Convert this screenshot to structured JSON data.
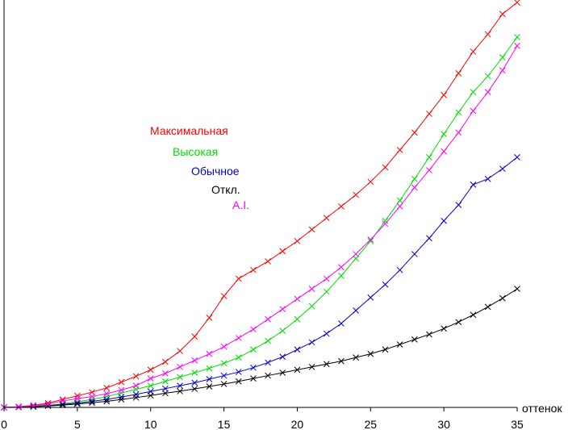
{
  "chart_data": {
    "type": "line",
    "title": "",
    "xlabel": "оттенок",
    "ylabel": "",
    "grid": false,
    "legend_placement": "center-left",
    "xlim": [
      0,
      35
    ],
    "ylim": [
      0,
      28
    ],
    "x_ticks": [
      0,
      5,
      10,
      15,
      20,
      25,
      30,
      35
    ],
    "x": [
      0,
      1,
      2,
      3,
      4,
      5,
      6,
      7,
      8,
      9,
      10,
      11,
      12,
      13,
      14,
      15,
      16,
      17,
      18,
      19,
      20,
      21,
      22,
      23,
      24,
      25,
      26,
      27,
      28,
      29,
      30,
      31,
      32,
      33,
      34,
      35
    ],
    "series": [
      {
        "name": "Максимальная",
        "color": "#ff0000",
        "values": [
          0.0,
          0.05,
          0.15,
          0.3,
          0.55,
          0.8,
          1.05,
          1.35,
          1.75,
          2.15,
          2.6,
          3.15,
          3.9,
          4.9,
          6.2,
          7.7,
          8.9,
          9.5,
          10.1,
          10.8,
          11.5,
          12.3,
          13.1,
          13.9,
          14.7,
          15.6,
          16.6,
          17.8,
          19.0,
          20.3,
          21.6,
          23.1,
          24.6,
          25.8,
          27.2,
          28.0
        ]
      },
      {
        "name": "Высокая",
        "color": "#00dd00",
        "values": [
          0.0,
          0.02,
          0.08,
          0.15,
          0.25,
          0.4,
          0.55,
          0.75,
          1.0,
          1.25,
          1.5,
          1.8,
          2.1,
          2.4,
          2.7,
          3.05,
          3.45,
          4.0,
          4.6,
          5.3,
          6.1,
          7.0,
          8.0,
          9.1,
          10.3,
          11.5,
          12.9,
          14.3,
          15.8,
          17.3,
          18.9,
          20.4,
          21.8,
          22.9,
          24.2,
          25.6
        ]
      },
      {
        "name": "Обычное",
        "color": "#0000cc",
        "values": [
          0.0,
          0.02,
          0.06,
          0.12,
          0.2,
          0.3,
          0.42,
          0.55,
          0.72,
          0.9,
          1.1,
          1.3,
          1.5,
          1.7,
          1.95,
          2.2,
          2.45,
          2.75,
          3.1,
          3.5,
          4.0,
          4.5,
          5.1,
          5.8,
          6.7,
          7.6,
          8.5,
          9.5,
          10.6,
          11.7,
          12.9,
          14.0,
          15.4,
          15.8,
          16.5,
          17.3
        ]
      },
      {
        "name": "Откл.",
        "color": "#000000",
        "values": [
          0.0,
          0.02,
          0.05,
          0.1,
          0.16,
          0.24,
          0.32,
          0.42,
          0.55,
          0.68,
          0.82,
          0.98,
          1.12,
          1.28,
          1.45,
          1.62,
          1.8,
          2.0,
          2.2,
          2.4,
          2.6,
          2.8,
          3.0,
          3.2,
          3.45,
          3.7,
          4.0,
          4.35,
          4.7,
          5.05,
          5.45,
          5.9,
          6.4,
          6.95,
          7.55,
          8.2
        ]
      },
      {
        "name": "A.I.",
        "color": "#ff00ff",
        "values": [
          0.0,
          0.04,
          0.12,
          0.22,
          0.45,
          0.6,
          0.75,
          0.95,
          1.2,
          1.5,
          2.0,
          2.35,
          2.8,
          3.25,
          3.7,
          4.2,
          4.8,
          5.4,
          6.1,
          6.8,
          7.5,
          8.2,
          8.9,
          9.7,
          10.6,
          11.6,
          12.7,
          13.9,
          15.2,
          16.4,
          17.7,
          19.0,
          20.5,
          21.8,
          23.3,
          25.0
        ]
      }
    ]
  }
}
